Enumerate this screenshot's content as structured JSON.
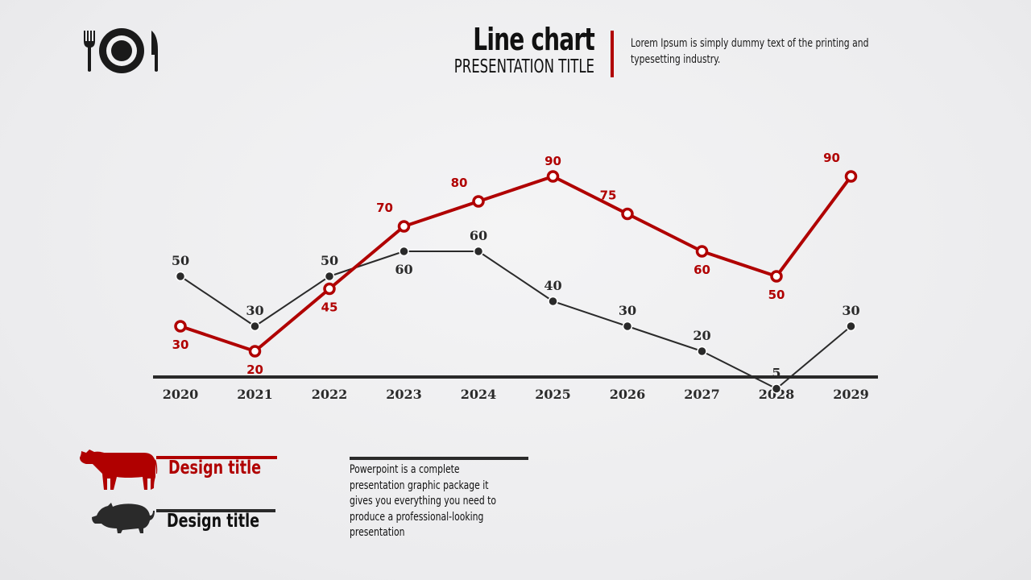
{
  "header": {
    "title": "Line chart",
    "subtitle": "PRESENTATION TITLE",
    "description": "Lorem Ipsum is simply dummy text of the printing and typesetting industry."
  },
  "colors": {
    "red": "#b00000",
    "dark": "#2a2a2a"
  },
  "icons": {
    "logo": "fork-plate-knife-icon"
  },
  "chart_data": {
    "type": "line",
    "categories": [
      "2020",
      "2021",
      "2022",
      "2023",
      "2024",
      "2025",
      "2026",
      "2027",
      "2028",
      "2029"
    ],
    "series": [
      {
        "name": "Design title (red)",
        "color": "#b00000",
        "values": [
          30,
          20,
          45,
          70,
          80,
          90,
          75,
          60,
          50,
          90
        ]
      },
      {
        "name": "Design title (dark)",
        "color": "#2a2a2a",
        "values": [
          50,
          30,
          50,
          60,
          60,
          40,
          30,
          20,
          5,
          30
        ]
      }
    ],
    "ylim": [
      0,
      100
    ],
    "grid": false,
    "title": "",
    "xlabel": "",
    "ylabel": ""
  },
  "legend": [
    {
      "label": "Design title",
      "icon": "cow-icon",
      "color": "#b00000"
    },
    {
      "label": "Design title",
      "icon": "pig-icon",
      "color": "#2a2a2a"
    }
  ],
  "body_text": "Powerpoint is a complete presentation graphic package it gives you everything you need to produce a professional-looking presentation"
}
